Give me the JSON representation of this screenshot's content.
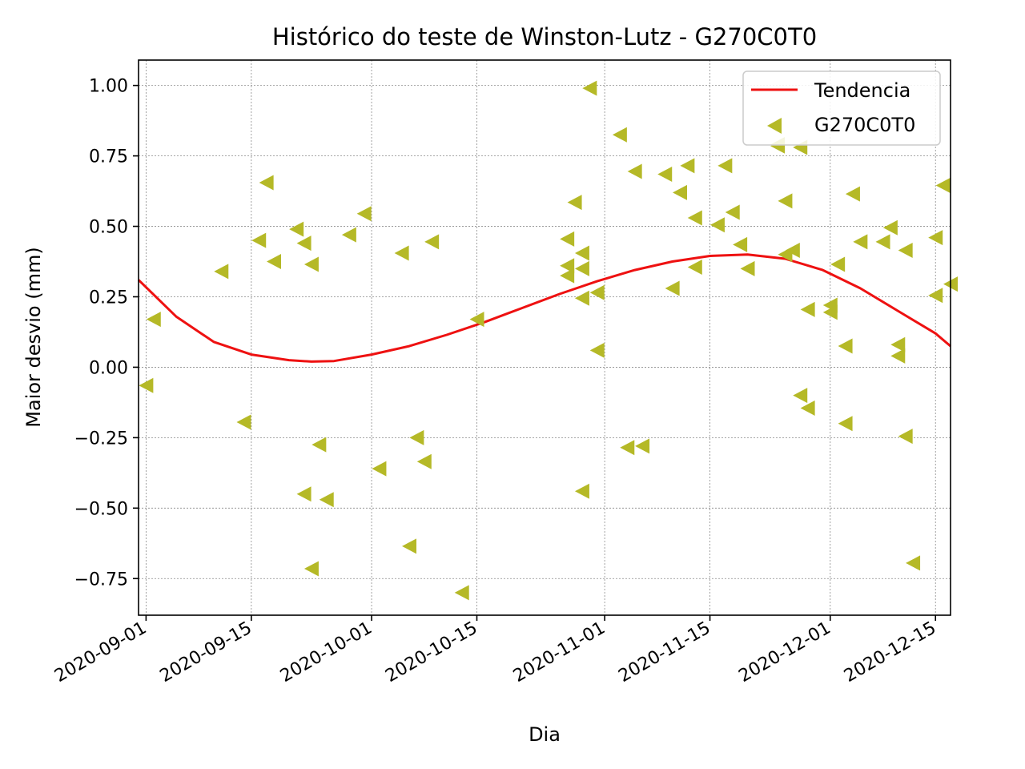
{
  "chart_data": {
    "type": "scatter",
    "title": "Histórico do teste de Winston-Lutz - G270C0T0",
    "xlabel": "Dia",
    "ylabel": "Maior desvio (mm)",
    "xlim": [
      "2020-08-31",
      "2020-12-17"
    ],
    "ylim": [
      -0.88,
      1.09
    ],
    "grid": true,
    "legend_position": "top-right",
    "x_ticks": [
      "2020-09-01",
      "2020-09-15",
      "2020-10-01",
      "2020-10-15",
      "2020-11-01",
      "2020-11-15",
      "2020-12-01",
      "2020-12-15"
    ],
    "y_ticks": [
      1.0,
      0.75,
      0.5,
      0.25,
      0.0,
      -0.25,
      -0.5,
      -0.75
    ],
    "y_tick_labels": [
      "1.00",
      "0.75",
      "0.50",
      "0.25",
      "0.00",
      "−0.25",
      "−0.50",
      "−0.75"
    ],
    "series": [
      {
        "name": "Tendencia",
        "kind": "line",
        "color": "#ee1111",
        "x": [
          "2020-08-31",
          "2020-09-05",
          "2020-09-10",
          "2020-09-15",
          "2020-09-20",
          "2020-09-23",
          "2020-09-26",
          "2020-10-01",
          "2020-10-06",
          "2020-10-11",
          "2020-10-16",
          "2020-10-21",
          "2020-10-26",
          "2020-10-31",
          "2020-11-05",
          "2020-11-10",
          "2020-11-15",
          "2020-11-20",
          "2020-11-25",
          "2020-11-30",
          "2020-12-05",
          "2020-12-10",
          "2020-12-15",
          "2020-12-17"
        ],
        "y": [
          0.31,
          0.18,
          0.09,
          0.045,
          0.025,
          0.02,
          0.022,
          0.045,
          0.075,
          0.115,
          0.16,
          0.21,
          0.26,
          0.305,
          0.345,
          0.375,
          0.395,
          0.4,
          0.385,
          0.345,
          0.28,
          0.2,
          0.12,
          0.075
        ]
      },
      {
        "name": "G270C0T0",
        "kind": "scatter",
        "marker": "triangle-left",
        "color": "#b5b927",
        "points": [
          [
            "2020-09-01",
            -0.065
          ],
          [
            "2020-09-02",
            0.17
          ],
          [
            "2020-09-11",
            0.34
          ],
          [
            "2020-09-14",
            -0.195
          ],
          [
            "2020-09-16",
            0.45
          ],
          [
            "2020-09-17",
            0.655
          ],
          [
            "2020-09-18",
            0.375
          ],
          [
            "2020-09-21",
            0.49
          ],
          [
            "2020-09-22",
            0.44
          ],
          [
            "2020-09-22",
            -0.45
          ],
          [
            "2020-09-23",
            0.365
          ],
          [
            "2020-09-23",
            -0.715
          ],
          [
            "2020-09-24",
            -0.275
          ],
          [
            "2020-09-25",
            -0.47
          ],
          [
            "2020-09-28",
            0.47
          ],
          [
            "2020-09-30",
            0.545
          ],
          [
            "2020-10-02",
            -0.36
          ],
          [
            "2020-10-05",
            0.405
          ],
          [
            "2020-10-06",
            -0.635
          ],
          [
            "2020-10-07",
            -0.25
          ],
          [
            "2020-10-08",
            -0.335
          ],
          [
            "2020-10-09",
            0.445
          ],
          [
            "2020-10-13",
            -0.8
          ],
          [
            "2020-10-15",
            0.17
          ],
          [
            "2020-10-27",
            0.455
          ],
          [
            "2020-10-27",
            0.36
          ],
          [
            "2020-10-27",
            0.325
          ],
          [
            "2020-10-28",
            0.585
          ],
          [
            "2020-10-29",
            0.405
          ],
          [
            "2020-10-29",
            0.35
          ],
          [
            "2020-10-29",
            0.245
          ],
          [
            "2020-10-29",
            -0.44
          ],
          [
            "2020-10-30",
            0.99
          ],
          [
            "2020-10-31",
            0.265
          ],
          [
            "2020-10-31",
            0.06
          ],
          [
            "2020-11-03",
            0.825
          ],
          [
            "2020-11-04",
            -0.285
          ],
          [
            "2020-11-05",
            0.695
          ],
          [
            "2020-11-06",
            -0.28
          ],
          [
            "2020-11-09",
            0.685
          ],
          [
            "2020-11-10",
            0.28
          ],
          [
            "2020-11-11",
            0.62
          ],
          [
            "2020-11-12",
            0.715
          ],
          [
            "2020-11-13",
            0.53
          ],
          [
            "2020-11-13",
            0.355
          ],
          [
            "2020-11-16",
            0.505
          ],
          [
            "2020-11-17",
            0.715
          ],
          [
            "2020-11-18",
            0.55
          ],
          [
            "2020-11-19",
            0.435
          ],
          [
            "2020-11-20",
            0.35
          ],
          [
            "2020-11-24",
            0.79
          ],
          [
            "2020-11-24",
            0.785
          ],
          [
            "2020-11-25",
            0.59
          ],
          [
            "2020-11-25",
            0.4
          ],
          [
            "2020-11-26",
            0.415
          ],
          [
            "2020-11-27",
            0.78
          ],
          [
            "2020-11-27",
            -0.1
          ],
          [
            "2020-11-28",
            0.205
          ],
          [
            "2020-11-28",
            -0.145
          ],
          [
            "2020-12-01",
            0.22
          ],
          [
            "2020-12-01",
            0.195
          ],
          [
            "2020-12-02",
            0.365
          ],
          [
            "2020-12-03",
            0.075
          ],
          [
            "2020-12-03",
            -0.2
          ],
          [
            "2020-12-04",
            0.615
          ],
          [
            "2020-12-05",
            0.445
          ],
          [
            "2020-12-08",
            0.445
          ],
          [
            "2020-12-09",
            0.495
          ],
          [
            "2020-12-10",
            0.08
          ],
          [
            "2020-12-10",
            0.04
          ],
          [
            "2020-12-11",
            0.415
          ],
          [
            "2020-12-11",
            -0.245
          ],
          [
            "2020-12-12",
            -0.695
          ],
          [
            "2020-12-15",
            0.46
          ],
          [
            "2020-12-15",
            0.255
          ],
          [
            "2020-12-16",
            0.645
          ],
          [
            "2020-12-17",
            0.295
          ]
        ]
      }
    ]
  }
}
